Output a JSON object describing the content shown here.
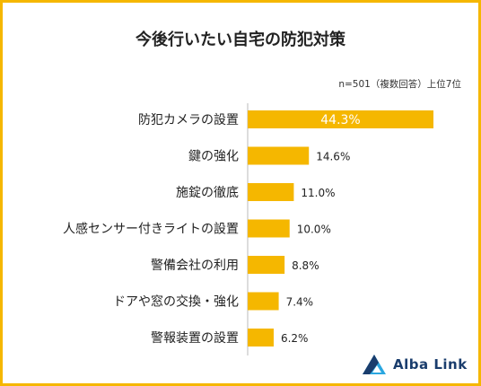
{
  "title": "今後行いたい自宅の防犯対策",
  "note": "n=501（複数回答）上位7位",
  "brand": {
    "name": "Alba Link",
    "color": "#1a3d6d",
    "accent": "#2aa7e0"
  },
  "colors": {
    "bar": "#f5b700",
    "frame": "#f5b700"
  },
  "chart_data": {
    "type": "bar",
    "orientation": "horizontal",
    "categories": [
      "防犯カメラの設置",
      "鍵の強化",
      "施錠の徹底",
      "人感センサー付きライトの設置",
      "警備会社の利用",
      "ドアや窓の交換・強化",
      "警報装置の設置"
    ],
    "values": [
      44.3,
      14.6,
      11.0,
      10.0,
      8.8,
      7.4,
      6.2
    ],
    "value_labels": [
      "44.3%",
      "14.6%",
      "11.0%",
      "10.0%",
      "8.8%",
      "7.4%",
      "6.2%"
    ],
    "unit": "%",
    "xlim": [
      0,
      44.3
    ],
    "grid": false,
    "legend": "none"
  }
}
